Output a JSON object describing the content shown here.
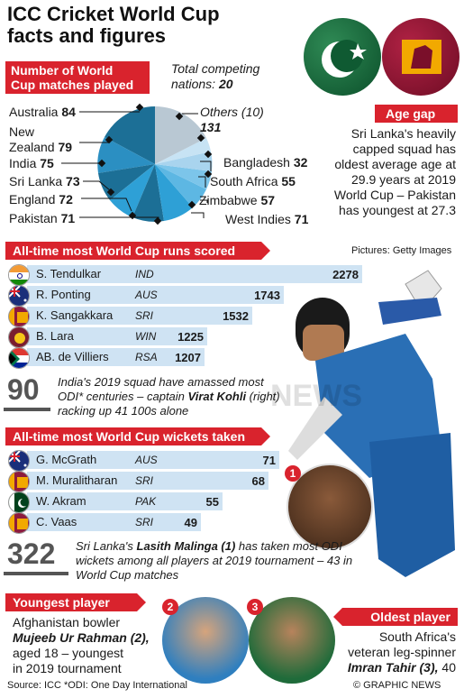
{
  "title_line1": "ICC Cricket World Cup",
  "title_line2": "facts and figures",
  "matches": {
    "header_line1": "Number of World",
    "header_line2": "Cup matches played",
    "total_label": "Total competing",
    "total_label2": "nations:",
    "total_value": "20",
    "others_label": "Others (10)",
    "others_value": "131",
    "teams": [
      {
        "name": "Australia",
        "value": "84"
      },
      {
        "name": "New Zealand",
        "value": "79"
      },
      {
        "name": "India",
        "value": "75"
      },
      {
        "name": "Sri Lanka",
        "value": "73"
      },
      {
        "name": "England",
        "value": "72"
      },
      {
        "name": "Pakistan",
        "value": "71"
      },
      {
        "name": "Bangladesh",
        "value": "32"
      },
      {
        "name": "South Africa",
        "value": "55"
      },
      {
        "name": "Zimbabwe",
        "value": "57"
      },
      {
        "name": "West Indies",
        "value": "71"
      }
    ]
  },
  "age_gap": {
    "header": "Age gap",
    "text": "Sri Lanka's heavily capped squad has oldest average age at 29.9 years at 2019 World Cup – Pakistan has youngest at 27.3"
  },
  "runs": {
    "header": "All-time most World Cup runs scored",
    "credit": "Pictures: Getty Images",
    "rows": [
      {
        "name": "S. Tendulkar",
        "country": "IND",
        "value": "2278",
        "v": 2278
      },
      {
        "name": "R. Ponting",
        "country": "AUS",
        "value": "1743",
        "v": 1743
      },
      {
        "name": "K. Sangakkara",
        "country": "SRI",
        "value": "1532",
        "v": 1532
      },
      {
        "name": "B. Lara",
        "country": "WIN",
        "value": "1225",
        "v": 1225
      },
      {
        "name": "AB. de Villiers",
        "country": "RSA",
        "value": "1207",
        "v": 1207
      }
    ],
    "stat_number": "90",
    "stat_text_a": "India's 2019 squad have amassed most ODI* centuries – captain ",
    "stat_text_b": "Virat Kohli",
    "stat_text_c": " (right) racking up 41 100s alone"
  },
  "wickets": {
    "header": "All-time most World Cup wickets taken",
    "rows": [
      {
        "name": "G. McGrath",
        "country": "AUS",
        "value": "71",
        "v": 71
      },
      {
        "name": "M. Muralitharan",
        "country": "SRI",
        "value": "68",
        "v": 68
      },
      {
        "name": "W. Akram",
        "country": "PAK",
        "value": "55",
        "v": 55
      },
      {
        "name": "C. Vaas",
        "country": "SRI",
        "value": "49",
        "v": 49
      }
    ],
    "stat_number": "322",
    "stat_text_a": "Sri Lanka's ",
    "stat_text_b": "Lasith Malinga (1)",
    "stat_text_c": " has taken most ODI wickets among all players at 2019 tournament – 43 in World Cup matches"
  },
  "youngest": {
    "header": "Youngest player",
    "line1": "Afghanistan bowler",
    "name": "Mujeeb Ur Rahman (2),",
    "line3": "aged 18 – youngest",
    "line4": "in 2019 tournament"
  },
  "oldest": {
    "header": "Oldest player",
    "line1": "South Africa's",
    "line2": "veteran leg-spinner",
    "name": "Imran Tahir (3),",
    "age": " 40"
  },
  "markers": [
    "1",
    "2",
    "3"
  ],
  "watermark": "NEWS",
  "footer_source": "Source: ICC  *ODI: One Day International",
  "footer_credit": "© GRAPHIC NEWS",
  "colors": {
    "red": "#d9232d",
    "bar": "#cfe3f3",
    "pie_dark": "#1c6f96",
    "pie_mid": "#2ea0d6",
    "pie_light": "#a9d4ee"
  }
}
